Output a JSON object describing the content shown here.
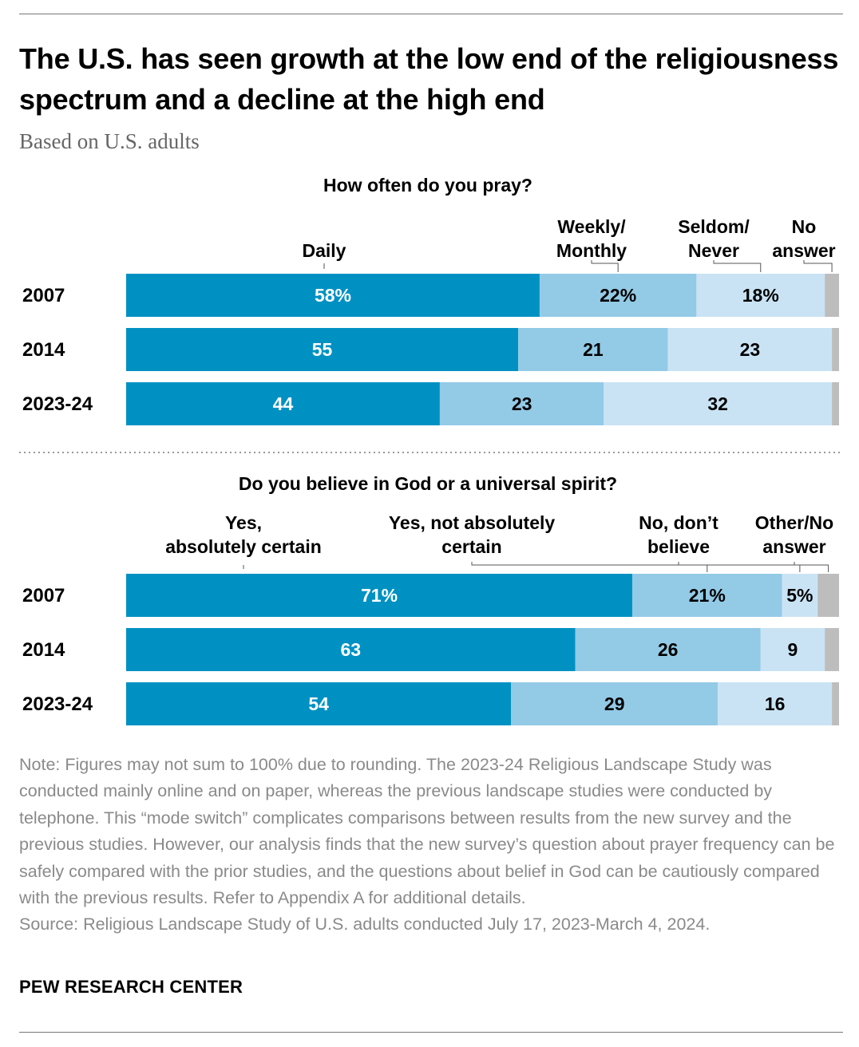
{
  "title": "The U.S. has seen growth at the low end of the religiousness spectrum and a decline at the high end",
  "subtitle": "Based on U.S. adults",
  "chart_data": [
    {
      "type": "bar",
      "orientation": "horizontal-stacked",
      "title": "How often do you pray?",
      "categories": [
        "2007",
        "2014",
        "2023-24"
      ],
      "series": [
        {
          "name": "Daily",
          "values": [
            58,
            55,
            44
          ],
          "labels": [
            "58%",
            "55",
            "44"
          ]
        },
        {
          "name": "Weekly/ Monthly",
          "values": [
            22,
            21,
            23
          ],
          "labels": [
            "22%",
            "21",
            "23"
          ]
        },
        {
          "name": "Seldom/ Never",
          "values": [
            18,
            23,
            32
          ],
          "labels": [
            "18%",
            "23",
            "32"
          ]
        },
        {
          "name": "No answer",
          "values": [
            2,
            1,
            1
          ],
          "labels": [
            "",
            "",
            ""
          ]
        }
      ],
      "legend_lines": [
        [
          "Daily"
        ],
        [
          "Weekly/",
          "Monthly"
        ],
        [
          "Seldom/",
          "Never"
        ],
        [
          "No",
          "answer"
        ]
      ],
      "colors": [
        "#0091c3",
        "#93cae6",
        "#c9e3f4",
        "#bdbdbd"
      ],
      "label_colors": [
        "#ffffff",
        "#000000",
        "#000000",
        "#000000"
      ],
      "xlim": [
        0,
        100
      ]
    },
    {
      "type": "bar",
      "orientation": "horizontal-stacked",
      "title": "Do you believe in God or a universal spirit?",
      "categories": [
        "2007",
        "2014",
        "2023-24"
      ],
      "series": [
        {
          "name": "Yes, absolutely certain",
          "values": [
            71,
            63,
            54
          ],
          "labels": [
            "71%",
            "63",
            "54"
          ]
        },
        {
          "name": "Yes, not absolutely certain",
          "values": [
            21,
            26,
            29
          ],
          "labels": [
            "21%",
            "26",
            "29"
          ]
        },
        {
          "name": "No, don’t believe",
          "values": [
            5,
            9,
            16
          ],
          "labels": [
            "5%",
            "9",
            "16"
          ]
        },
        {
          "name": "Other/No answer",
          "values": [
            3,
            2,
            1
          ],
          "labels": [
            "",
            "",
            ""
          ]
        }
      ],
      "legend_lines": [
        [
          "Yes,",
          "absolutely certain"
        ],
        [
          "Yes, not absolutely",
          "certain"
        ],
        [
          "No, don’t",
          "believe"
        ],
        [
          "Other/No",
          "answer"
        ]
      ],
      "colors": [
        "#0091c3",
        "#93cae6",
        "#c9e3f4",
        "#bdbdbd"
      ],
      "label_colors": [
        "#ffffff",
        "#000000",
        "#000000",
        "#000000"
      ],
      "xlim": [
        0,
        100
      ]
    }
  ],
  "note": "Note: Figures may not sum to 100% due to rounding. The 2023-24 Religious Landscape Study was conducted mainly online and on paper, whereas the previous landscape studies were conducted by telephone. This “mode switch” complicates comparisons between results from the new survey and the previous studies. However, our analysis finds that the new survey’s question about prayer frequency can be safely compared with the prior studies, and the questions about belief in God can be cautiously compared with the previous results. Refer to Appendix A for additional details.",
  "source": "Source: Religious Landscape Study of U.S. adults conducted July 17, 2023-March 4, 2024.",
  "footer": "PEW RESEARCH CENTER"
}
